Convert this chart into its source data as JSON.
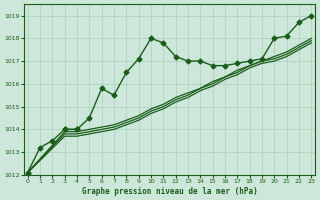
{
  "bg_color": "#cde8da",
  "grid_color": "#aacfbc",
  "line_color": "#1a5c1a",
  "xlabel": "Graphe pression niveau de la mer (hPa)",
  "ylim": [
    1012.0,
    1019.5
  ],
  "xlim": [
    -0.3,
    23.3
  ],
  "yticks": [
    1012,
    1013,
    1014,
    1015,
    1016,
    1017,
    1018,
    1019
  ],
  "xticks": [
    0,
    1,
    2,
    3,
    4,
    5,
    6,
    7,
    8,
    9,
    10,
    11,
    12,
    13,
    14,
    15,
    16,
    17,
    18,
    19,
    20,
    21,
    22,
    23
  ],
  "series": [
    {
      "x": [
        0,
        1,
        2,
        3,
        4,
        5,
        6,
        7,
        8,
        9,
        10,
        11,
        12,
        13,
        14,
        15,
        16,
        17,
        18,
        19,
        20,
        21,
        22,
        23
      ],
      "y": [
        1012.1,
        null,
        null,
        1014.0,
        1014.0,
        1014.5,
        1015.8,
        1015.5,
        1016.5,
        1017.1,
        1018.0,
        1017.8,
        1017.2,
        1017.0,
        1017.0,
        1016.8,
        1016.8,
        1016.9,
        1017.0,
        1017.1,
        1018.0,
        1018.1,
        1018.7,
        1019.0
      ],
      "marker": "D",
      "markersize": 2.5,
      "linewidth": 1.0,
      "linestyle": "-"
    },
    {
      "x": [
        0,
        1,
        2,
        3,
        4
      ],
      "y": [
        1012.1,
        1013.2,
        1013.5,
        1014.0,
        1014.0
      ],
      "marker": "D",
      "markersize": 2.5,
      "linewidth": 1.0,
      "linestyle": "-"
    },
    {
      "x": [
        0,
        3,
        4,
        5,
        6,
        7,
        8,
        9,
        10,
        11,
        12,
        13,
        14,
        15,
        16,
        17,
        18,
        19,
        20,
        21,
        22,
        23
      ],
      "y": [
        1012.1,
        1013.9,
        1013.9,
        1014.0,
        1014.1,
        1014.2,
        1014.4,
        1014.6,
        1014.9,
        1015.1,
        1015.4,
        1015.6,
        1015.8,
        1016.1,
        1016.3,
        1016.6,
        1016.8,
        1017.0,
        1017.2,
        1017.4,
        1017.7,
        1018.0
      ],
      "marker": null,
      "markersize": 0,
      "linewidth": 0.9,
      "linestyle": "-"
    },
    {
      "x": [
        0,
        3,
        4,
        5,
        6,
        7,
        8,
        9,
        10,
        11,
        12,
        13,
        14,
        15,
        16,
        17,
        18,
        19,
        20,
        21,
        22,
        23
      ],
      "y": [
        1012.1,
        1013.8,
        1013.8,
        1013.9,
        1014.0,
        1014.1,
        1014.3,
        1014.5,
        1014.8,
        1015.0,
        1015.3,
        1015.5,
        1015.8,
        1016.0,
        1016.3,
        1016.5,
        1016.8,
        1017.0,
        1017.1,
        1017.3,
        1017.6,
        1017.9
      ],
      "marker": null,
      "markersize": 0,
      "linewidth": 0.9,
      "linestyle": "-"
    },
    {
      "x": [
        0,
        3,
        4,
        5,
        6,
        7,
        8,
        9,
        10,
        11,
        12,
        13,
        14,
        15,
        16,
        17,
        18,
        19,
        20,
        21,
        22,
        23
      ],
      "y": [
        1012.1,
        1013.7,
        1013.7,
        1013.8,
        1013.9,
        1014.0,
        1014.2,
        1014.4,
        1014.7,
        1014.9,
        1015.2,
        1015.4,
        1015.7,
        1015.9,
        1016.2,
        1016.4,
        1016.7,
        1016.9,
        1017.0,
        1017.2,
        1017.5,
        1017.8
      ],
      "marker": null,
      "markersize": 0,
      "linewidth": 0.9,
      "linestyle": "-"
    }
  ]
}
